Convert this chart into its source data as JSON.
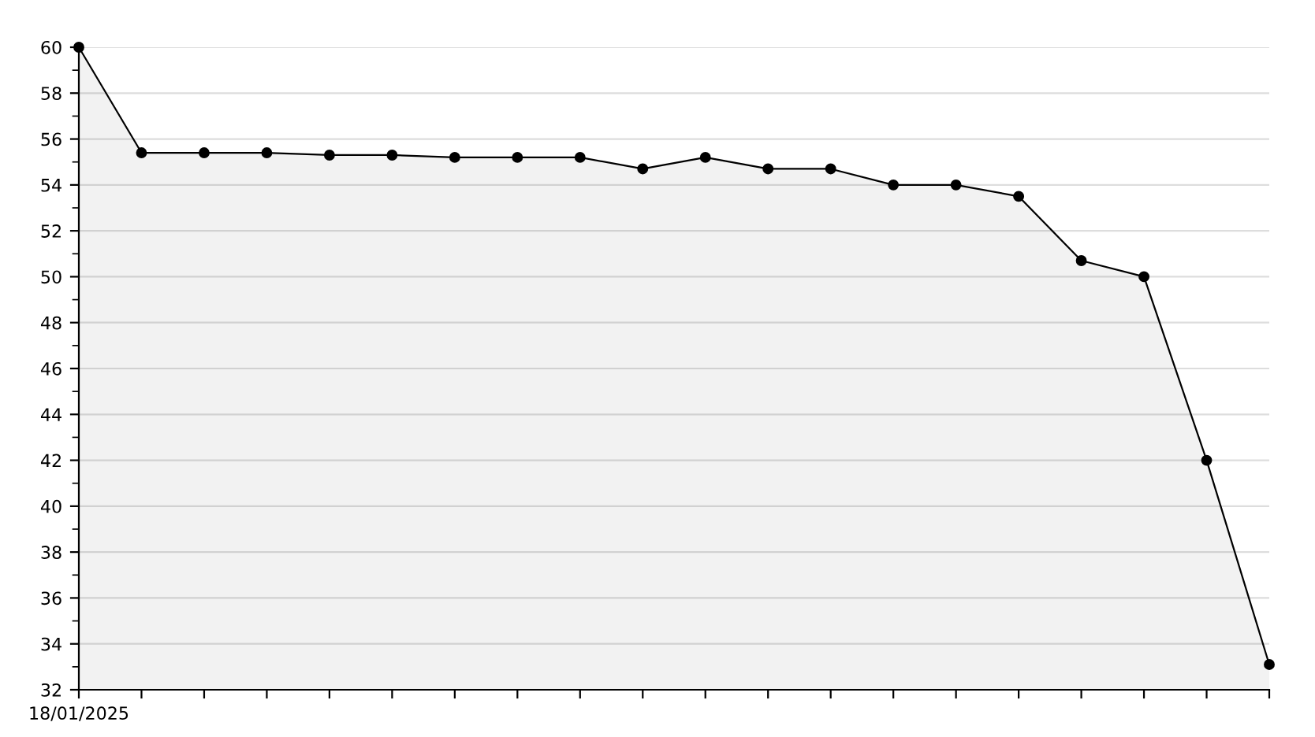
{
  "chart_data": {
    "type": "area",
    "categories": [
      "18/01/2025",
      null,
      null,
      null,
      null,
      null,
      null,
      null,
      null,
      null,
      null,
      null,
      null,
      null,
      null,
      null,
      null,
      null,
      null,
      null
    ],
    "series": [
      {
        "color": "#000000",
        "values": [
          60,
          55.4,
          55.4,
          55.4,
          55.3,
          55.3,
          55.2,
          55.2,
          55.2,
          54.7,
          55.2,
          54.7,
          54.7,
          54.0,
          54.0,
          53.5,
          50.7,
          50.0,
          42.0,
          33.1
        ]
      }
    ],
    "ylim": [
      32,
      60
    ],
    "yticks": [
      32,
      34,
      36,
      38,
      40,
      42,
      44,
      46,
      48,
      50,
      52,
      54,
      56,
      58,
      60
    ],
    "grid": "y",
    "marker": "circle",
    "line_style": "solid",
    "legend": false
  }
}
